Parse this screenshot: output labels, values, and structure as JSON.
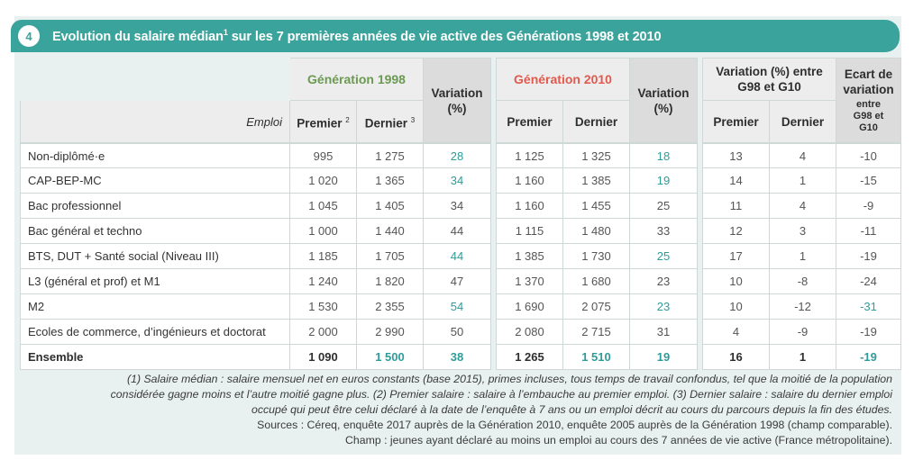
{
  "header": {
    "badge": "4",
    "title_main": "Evolution du salaire médian",
    "title_sup": "1",
    "title_rest": " sur les 7 premières années de vie active des Générations 1998 et 2010"
  },
  "table": {
    "gen1998": "Génération 1998",
    "gen2010": "Génération 2010",
    "variation_label": "Variation (%)",
    "variation_g98_g10": "Variation (%) entre G98 et G10",
    "ecart_label": "Ecart de variation",
    "ecart_sub": "entre G98 et G10",
    "emploi": "Emploi",
    "premier": "Premier",
    "premier_sup": "2",
    "dernier": "Dernier",
    "dernier_sup": "3",
    "rows": [
      {
        "label": "Non-diplômé·e",
        "p98": "995",
        "d98": "1 275",
        "v98": "28",
        "p10": "1 125",
        "d10": "1 325",
        "v10": "18",
        "vp": "13",
        "vd": "4",
        "ec": "-10"
      },
      {
        "label": "CAP-BEP-MC",
        "p98": "1 020",
        "d98": "1 365",
        "v98": "34",
        "p10": "1 160",
        "d10": "1 385",
        "v10": "19",
        "vp": "14",
        "vd": "1",
        "ec": "-15"
      },
      {
        "label": "Bac professionnel",
        "p98": "1 045",
        "d98": "1 405",
        "v98": "34",
        "p10": "1 160",
        "d10": "1 455",
        "v10": "25",
        "vp": "11",
        "vd": "4",
        "ec": "-9"
      },
      {
        "label": "Bac général et techno",
        "p98": "1 000",
        "d98": "1 440",
        "v98": "44",
        "p10": "1 115",
        "d10": "1 480",
        "v10": "33",
        "vp": "12",
        "vd": "3",
        "ec": "-11"
      },
      {
        "label": "BTS, DUT + Santé social (Niveau III)",
        "p98": "1 185",
        "d98": "1 705",
        "v98": "44",
        "p10": "1 385",
        "d10": "1 730",
        "v10": "25",
        "vp": "17",
        "vd": "1",
        "ec": "-19"
      },
      {
        "label": "L3 (général et prof) et M1",
        "p98": "1 240",
        "d98": "1 820",
        "v98": "47",
        "p10": "1 370",
        "d10": "1 680",
        "v10": "23",
        "vp": "10",
        "vd": "-8",
        "ec": "-24"
      },
      {
        "label": "M2",
        "p98": "1 530",
        "d98": "2 355",
        "v98": "54",
        "p10": "1 690",
        "d10": "2 075",
        "v10": "23",
        "vp": "10",
        "vd": "-12",
        "ec": "-31"
      },
      {
        "label": "Ecoles de commerce, d’ingénieurs et doctorat",
        "p98": "2 000",
        "d98": "2 990",
        "v98": "50",
        "p10": "2 080",
        "d10": "2 715",
        "v10": "31",
        "vp": "4",
        "vd": "-9",
        "ec": "-19"
      }
    ],
    "total": {
      "label": "Ensemble",
      "p98": "1 090",
      "d98": "1 500",
      "v98": "38",
      "p10": "1 265",
      "d10": "1 510",
      "v10": "19",
      "vp": "16",
      "vd": "1",
      "ec": "-19"
    },
    "teal_v98_rows": [
      0,
      1,
      4,
      6
    ],
    "teal_v10_rows": [
      0,
      1,
      4,
      6
    ],
    "teal_ec_rows": [
      6
    ]
  },
  "notes": {
    "line1": "(1) Salaire médian : salaire mensuel net en euros constants (base 2015), primes incluses, tous temps de travail confondus, tel que la moitié de la population",
    "line2": "considérée gagne moins et l’autre moitié gagne plus. (2) Premier salaire : salaire à l’embauche au premier emploi. (3) Dernier salaire : salaire du dernier emploi",
    "line3": "occupé qui peut être celui déclaré à la date de l’enquête à 7 ans ou un emploi décrit au cours du parcours depuis la fin des études.",
    "line4": "Sources : Céreq, enquête 2017 auprès de la Génération 2010, enquête 2005 auprès de la Génération 1998 (champ comparable).",
    "line5": "Champ : jeunes ayant déclaré au moins un emploi au cours des 7 années de vie active (France métropolitaine)."
  },
  "colors": {
    "teal": "#3aa39b",
    "gen1998": "#6b9a52",
    "gen2010": "#e05a4e",
    "panel": "#e8f1f0"
  }
}
